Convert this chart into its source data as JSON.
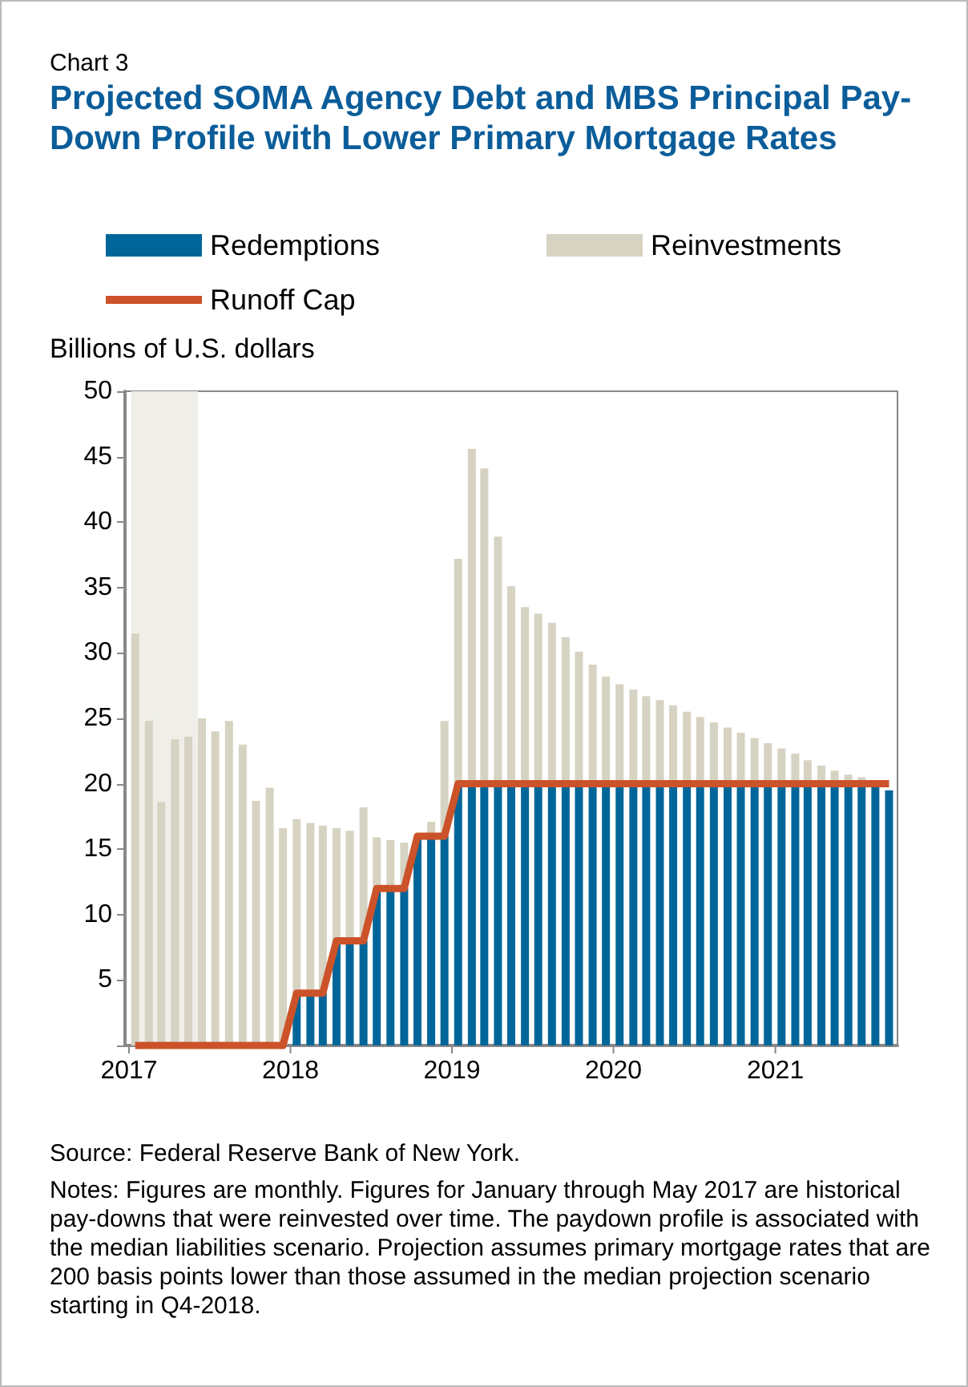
{
  "chart_data": {
    "type": "bar",
    "stacked": true,
    "title": "Projected SOMA Agency Debt and MBS Principal Pay-Down Profile with Lower Primary Mortgage Rates",
    "ylabel": "Billions of U.S. dollars",
    "annotations": [
      "Chart 3",
      "Source: Federal Reserve Bank of New York.",
      "Notes: Figures are monthly. Figures for January through May 2017 are historical pay-downs that were reinvested over time. The paydown profile is associated with the median liabilities scenario. Projection assumes primary mortgage rates that are 200 basis points lower than those assumed in the median projection scenario starting in Q4-2018."
    ],
    "x": [
      "2017-01-15",
      "2017-02-15",
      "2017-03-15",
      "2017-04-15",
      "2017-05-15",
      "2017-06-15",
      "2017-07-15",
      "2017-08-15",
      "2017-09-15",
      "2017-10-15",
      "2017-11-15",
      "2017-12-15",
      "2018-01-15",
      "2018-02-15",
      "2018-03-15",
      "2018-04-15",
      "2018-05-15",
      "2018-06-15",
      "2018-07-15",
      "2018-08-15",
      "2018-09-15",
      "2018-10-15",
      "2018-11-15",
      "2018-12-15",
      "2019-01-15",
      "2019-02-15",
      "2019-03-15",
      "2019-04-15",
      "2019-05-15",
      "2019-06-15",
      "2019-07-15",
      "2019-08-15",
      "2019-09-15",
      "2019-10-15",
      "2019-11-15",
      "2019-12-15",
      "2020-01-15",
      "2020-02-15",
      "2020-03-15",
      "2020-04-15",
      "2020-05-15",
      "2020-06-15",
      "2020-07-15",
      "2020-08-15",
      "2020-09-15",
      "2020-10-15",
      "2020-11-15",
      "2020-12-15",
      "2021-01-15",
      "2021-02-15",
      "2021-03-15",
      "2021-04-15",
      "2021-05-15",
      "2021-06-15",
      "2021-07-15",
      "2021-08-15",
      "2021-09-15"
    ],
    "series": [
      {
        "name": "Redemptions",
        "color": "#006699",
        "values": [
          0,
          0,
          0,
          0,
          0,
          0,
          0,
          0,
          0,
          0,
          0,
          0,
          4,
          4,
          4,
          8,
          8,
          8,
          12,
          12,
          12,
          16,
          16,
          16,
          20,
          20,
          20,
          20,
          20,
          20,
          20,
          20,
          20,
          20,
          20,
          20,
          20,
          20,
          20,
          20,
          20,
          20,
          20,
          20,
          20,
          20,
          20,
          20,
          20,
          20,
          20,
          20,
          20,
          20,
          20,
          20,
          19.5
        ]
      },
      {
        "name": "Reinvestments",
        "color": "#d6d3c2",
        "values": [
          31.5,
          24.8,
          18.6,
          23.4,
          23.6,
          25.0,
          24.0,
          24.8,
          23.0,
          18.7,
          19.7,
          16.6,
          13.3,
          13.0,
          12.8,
          8.6,
          8.4,
          10.2,
          3.9,
          3.7,
          3.5,
          0,
          1.1,
          8.8,
          17.2,
          25.6,
          24.1,
          18.9,
          15.1,
          13.5,
          13.0,
          12.3,
          11.2,
          10.1,
          9.1,
          8.2,
          7.6,
          7.2,
          6.7,
          6.4,
          6.0,
          5.5,
          5.1,
          4.7,
          4.3,
          3.9,
          3.5,
          3.1,
          2.7,
          2.3,
          1.8,
          1.4,
          1.0,
          0.7,
          0.5,
          0,
          0
        ]
      },
      {
        "name": "Runoff Cap",
        "type": "line",
        "color": "#cc5229",
        "values": [
          0,
          0,
          0,
          0,
          0,
          0,
          0,
          0,
          0,
          0,
          0,
          0,
          4,
          4,
          4,
          8,
          8,
          8,
          12,
          12,
          12,
          16,
          16,
          16,
          20,
          20,
          20,
          20,
          20,
          20,
          20,
          20,
          20,
          20,
          20,
          20,
          20,
          20,
          20,
          20,
          20,
          20,
          20,
          20,
          20,
          20,
          20,
          20,
          20,
          20,
          20,
          20,
          20,
          20,
          20,
          20,
          20
        ]
      }
    ],
    "xlim": [
      "2017-01-01",
      "2021-09-25"
    ],
    "xticks": [
      "2017",
      "2018",
      "2019",
      "2020",
      "2021"
    ],
    "ylim": [
      0,
      50
    ],
    "yticks": [
      {
        "value": 0,
        "label": null
      },
      5,
      10,
      15,
      20,
      25,
      30,
      35,
      40,
      45,
      50
    ],
    "bands": [
      {
        "axis": "x",
        "from": "2017-01-06",
        "to": "2017-06-06",
        "color": "#efeee9"
      }
    ],
    "legend": "top",
    "grid": false,
    "marker": "none",
    "line_style": "solid"
  }
}
